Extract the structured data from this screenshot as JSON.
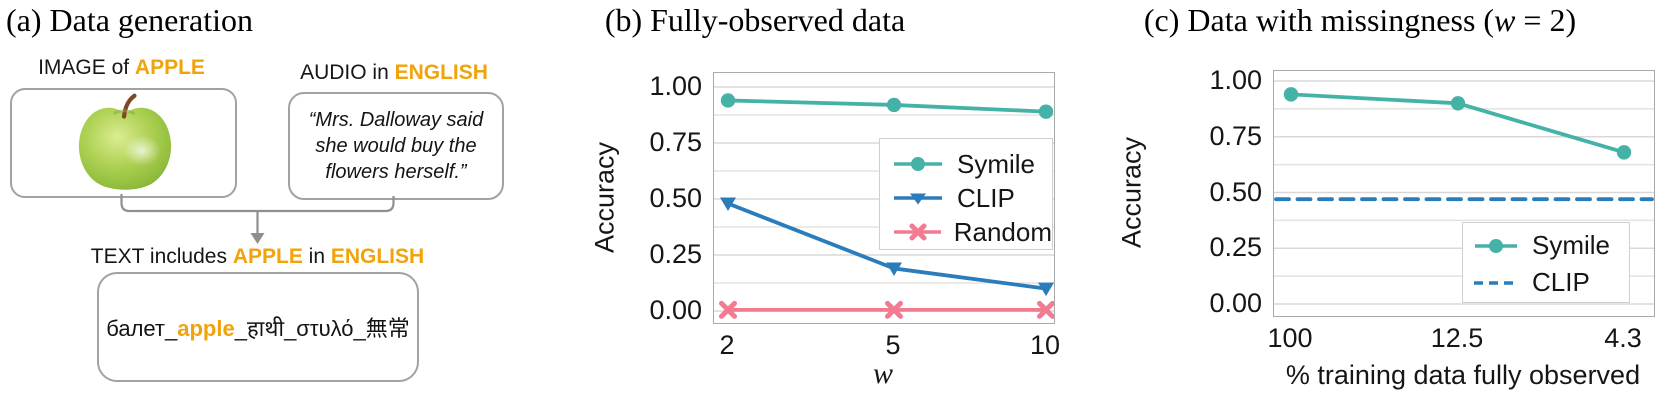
{
  "colors": {
    "accent_orange": "#F0A30A",
    "symile_teal": "#45B2A8",
    "clip_blue": "#2B7CBB",
    "random_pink": "#F27B92"
  },
  "panel_a": {
    "title": "(a) Data generation",
    "image_label": {
      "prefix": "IMAGE of ",
      "highlight": "APPLE"
    },
    "audio_label": {
      "prefix": "AUDIO in ",
      "highlight": "ENGLISH"
    },
    "audio_quote_lines": [
      "“Mrs. Dalloway said",
      "she would buy the",
      "flowers herself.”"
    ],
    "apple_image": "green-apple-photo",
    "text_label": {
      "part1": "TEXT includes ",
      "highlight1": "APPLE",
      "part2": " in ",
      "highlight2": "ENGLISH"
    },
    "generated_text": {
      "pre": "балет_",
      "highlight": "apple",
      "post": "_हाथी_στυλό_無常"
    }
  },
  "chart_data": [
    {
      "id": "b",
      "type": "line",
      "title": "(b) Fully-observed data",
      "xlabel": "w",
      "ylabel": "Accuracy",
      "x_values": [
        2,
        5,
        10
      ],
      "x_tick_labels": [
        "2",
        "5",
        "10"
      ],
      "y_ticks": [
        0,
        0.25,
        0.5,
        0.75,
        1.0
      ],
      "y_tick_labels": [
        "0.00",
        "0.25",
        "0.50",
        "0.75",
        "1.00"
      ],
      "ylim": [
        -0.05,
        1.06
      ],
      "grid": "horizontal lines every 0.125",
      "legend_position": "center-right",
      "series": [
        {
          "name": "Symile",
          "color": "#45B2A8",
          "marker": "circle",
          "line": "solid",
          "values": [
            0.94,
            0.92,
            0.89
          ]
        },
        {
          "name": "CLIP",
          "color": "#2B7CBB",
          "marker": "triangle-down",
          "line": "solid",
          "values": [
            0.48,
            0.19,
            0.1
          ]
        },
        {
          "name": "Random",
          "color": "#F27B92",
          "marker": "x",
          "line": "solid",
          "values": [
            0.005,
            0.005,
            0.005
          ]
        }
      ]
    },
    {
      "id": "c",
      "type": "line",
      "title_parts": {
        "prefix": "(c) Data with missingness (",
        "var": "w",
        "suffix": " = 2)"
      },
      "xlabel": "% training data fully observed",
      "ylabel": "Accuracy",
      "x_tick_labels": [
        "100",
        "12.5",
        "4.3"
      ],
      "y_ticks": [
        0,
        0.25,
        0.5,
        0.75,
        1.0
      ],
      "y_tick_labels": [
        "0.00",
        "0.25",
        "0.50",
        "0.75",
        "1.00"
      ],
      "ylim": [
        -0.05,
        1.07
      ],
      "grid": "horizontal lines every 0.125",
      "legend_position": "lower-right",
      "series": [
        {
          "name": "Symile",
          "color": "#45B2A8",
          "marker": "circle",
          "line": "solid",
          "values": [
            0.94,
            0.9,
            0.68
          ]
        },
        {
          "name": "CLIP",
          "color": "#2B7CBB",
          "marker": "none",
          "line": "dashed",
          "extent": "full-width",
          "values": [
            0.47,
            0.47,
            0.47
          ]
        }
      ]
    }
  ]
}
